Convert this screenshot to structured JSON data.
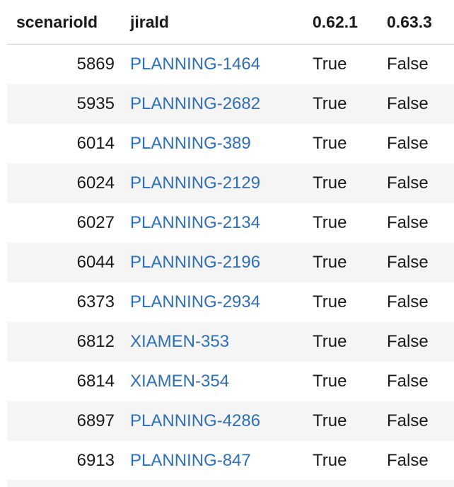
{
  "table": {
    "headers": {
      "scenario": "scenarioId",
      "jira": "jiraId",
      "v1": "0.62.1",
      "v2": "0.63.3"
    },
    "rows": [
      {
        "scenarioId": "5869",
        "jiraId": "PLANNING-1464",
        "v1": "True",
        "v2": "False"
      },
      {
        "scenarioId": "5935",
        "jiraId": "PLANNING-2682",
        "v1": "True",
        "v2": "False"
      },
      {
        "scenarioId": "6014",
        "jiraId": "PLANNING-389",
        "v1": "True",
        "v2": "False"
      },
      {
        "scenarioId": "6024",
        "jiraId": "PLANNING-2129",
        "v1": "True",
        "v2": "False"
      },
      {
        "scenarioId": "6027",
        "jiraId": "PLANNING-2134",
        "v1": "True",
        "v2": "False"
      },
      {
        "scenarioId": "6044",
        "jiraId": "PLANNING-2196",
        "v1": "True",
        "v2": "False"
      },
      {
        "scenarioId": "6373",
        "jiraId": "PLANNING-2934",
        "v1": "True",
        "v2": "False"
      },
      {
        "scenarioId": "6812",
        "jiraId": "XIAMEN-353",
        "v1": "True",
        "v2": "False"
      },
      {
        "scenarioId": "6814",
        "jiraId": "XIAMEN-354",
        "v1": "True",
        "v2": "False"
      },
      {
        "scenarioId": "6897",
        "jiraId": "PLANNING-4286",
        "v1": "True",
        "v2": "False"
      },
      {
        "scenarioId": "6913",
        "jiraId": "PLANNING-847",
        "v1": "True",
        "v2": "False"
      }
    ]
  },
  "colors": {
    "link": "#2f6fba",
    "stripe": "#f5f5f5",
    "header_rule": "#cfcfcf",
    "text": "#1a1a1a"
  }
}
